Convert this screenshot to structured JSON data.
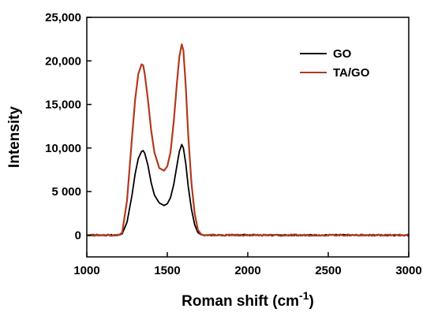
{
  "chart_data": {
    "type": "line",
    "title": "",
    "xlabel": "Roman shift",
    "xlabel_unit_base": "cm",
    "xlabel_unit_exp": "-1",
    "ylabel": "Intensity",
    "xlim": [
      1000,
      3000
    ],
    "ylim": [
      -2500,
      25000
    ],
    "grid": false,
    "legend_position": "top-right",
    "x_ticks": [
      {
        "value": 1000,
        "label": "1000"
      },
      {
        "value": 1500,
        "label": "1500"
      },
      {
        "value": 2000,
        "label": "2000"
      },
      {
        "value": 2500,
        "label": "2500"
      },
      {
        "value": 3000,
        "label": "3000"
      }
    ],
    "y_ticks": [
      {
        "value": 0,
        "label": "0"
      },
      {
        "value": 5000,
        "label": "5 000"
      },
      {
        "value": 10000,
        "label": "10,000"
      },
      {
        "value": 15000,
        "label": "15,000"
      },
      {
        "value": 20000,
        "label": "20,000"
      },
      {
        "value": 25000,
        "label": "25,000"
      }
    ],
    "series": [
      {
        "name": "GO",
        "color": "#000000",
        "x": [
          1000,
          1100,
          1200,
          1220,
          1250,
          1280,
          1300,
          1320,
          1340,
          1350,
          1360,
          1380,
          1400,
          1420,
          1450,
          1480,
          1500,
          1520,
          1540,
          1560,
          1575,
          1590,
          1600,
          1615,
          1630,
          1650,
          1670,
          1690,
          1710,
          1730,
          1800,
          2000,
          2200,
          2400,
          2600,
          2800,
          3000
        ],
        "y": [
          0,
          0,
          0,
          150,
          1500,
          4500,
          7000,
          8800,
          9600,
          9700,
          9400,
          8000,
          6000,
          4600,
          3700,
          3400,
          3600,
          4300,
          5800,
          8000,
          9600,
          10400,
          10000,
          8200,
          5600,
          3000,
          1200,
          300,
          50,
          0,
          0,
          0,
          0,
          0,
          0,
          0,
          0
        ]
      },
      {
        "name": "TA/GO",
        "color": "#b03a1e",
        "x": [
          1000,
          1100,
          1200,
          1220,
          1250,
          1280,
          1300,
          1320,
          1340,
          1350,
          1360,
          1380,
          1400,
          1420,
          1450,
          1480,
          1500,
          1520,
          1540,
          1560,
          1575,
          1590,
          1600,
          1615,
          1630,
          1650,
          1670,
          1690,
          1710,
          1730,
          1800,
          2000,
          2200,
          2400,
          2600,
          2800,
          3000
        ],
        "y": [
          0,
          0,
          0,
          300,
          4000,
          11000,
          15500,
          18500,
          19600,
          19500,
          18500,
          15500,
          12000,
          9500,
          7700,
          7400,
          7900,
          9500,
          13000,
          17500,
          20500,
          21900,
          21200,
          17000,
          11500,
          6000,
          2500,
          600,
          100,
          0,
          0,
          0,
          0,
          0,
          0,
          0,
          0
        ]
      }
    ]
  }
}
